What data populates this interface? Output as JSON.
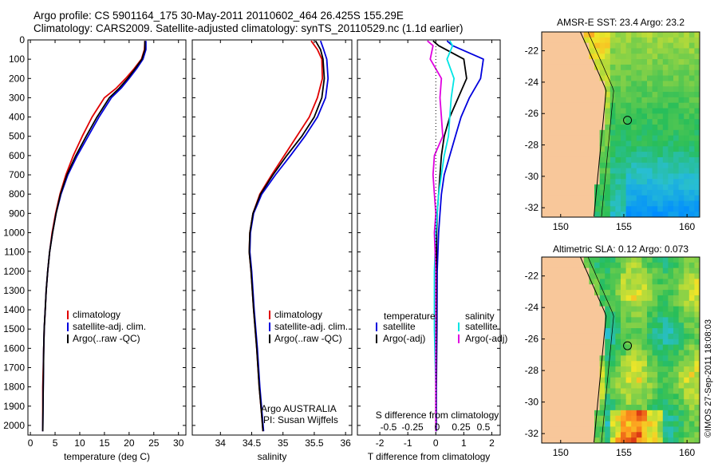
{
  "header": {
    "line1": "Argo profile: CS 5901164_175 30-May-2011 20110602_464 26.425S 155.29E",
    "line2": "Climatology: CARS2009. Satellite-adjusted climatology: synTS_20110529.nc (1.1d earlier)"
  },
  "stamp": "©IMOS 27-Sep-2011 18:08:03",
  "colors": {
    "climatology": "#e00000",
    "satellite": "#0000dd",
    "argo": "#000000",
    "salinity_satellite": "#00e5e5",
    "salinity_argo": "#e000e0",
    "land": "#f8c79a"
  },
  "chart_data": [
    {
      "type": "line",
      "id": "temperature",
      "xlabel": "temperature (deg C)",
      "ylim": [
        2050,
        0
      ],
      "xlim": [
        -0.5,
        31.5
      ],
      "xticks": [
        0,
        5,
        10,
        15,
        20,
        25,
        30
      ],
      "yticks": [
        0,
        100,
        200,
        300,
        400,
        500,
        600,
        700,
        800,
        900,
        1000,
        1100,
        1200,
        1300,
        1400,
        1500,
        1600,
        1700,
        1800,
        1900,
        2000
      ],
      "legend": [
        "climatology",
        "satellite-adj. clim.",
        "Argo(..raw -QC)"
      ],
      "series": [
        {
          "name": "climatology",
          "color": "#e00000",
          "x": [
            23.2,
            23.1,
            22.5,
            21.0,
            19.3,
            17.4,
            15.0,
            12.5,
            10.5,
            8.7,
            7.2,
            6.0,
            5.1,
            4.4,
            3.9,
            3.5,
            3.2,
            3.0,
            2.8,
            2.7,
            2.5,
            2.5
          ],
          "y": [
            5,
            50,
            100,
            150,
            200,
            250,
            300,
            400,
            500,
            600,
            700,
            800,
            900,
            1000,
            1100,
            1200,
            1300,
            1400,
            1500,
            1600,
            1800,
            2030
          ]
        },
        {
          "name": "satellite-adj. clim.",
          "color": "#0000dd",
          "x": [
            23.4,
            23.4,
            22.8,
            21.5,
            20.0,
            18.4,
            16.4,
            13.9,
            11.7,
            9.5,
            7.6,
            6.2,
            5.2,
            4.5,
            3.9,
            3.5,
            3.2,
            3.0,
            2.8,
            2.7,
            2.6,
            2.5
          ],
          "y": [
            5,
            50,
            100,
            150,
            200,
            250,
            300,
            400,
            500,
            600,
            700,
            800,
            900,
            1000,
            1100,
            1200,
            1300,
            1400,
            1500,
            1600,
            1800,
            2030
          ]
        },
        {
          "name": "Argo(..raw -QC)",
          "color": "#000000",
          "x": [
            23.2,
            23.2,
            22.6,
            21.2,
            19.7,
            18.0,
            16.0,
            13.5,
            11.3,
            9.2,
            7.4,
            6.1,
            5.2,
            4.5,
            3.9,
            3.5,
            3.2,
            3.0,
            2.8,
            2.7,
            2.6,
            2.5
          ],
          "y": [
            5,
            50,
            100,
            150,
            200,
            250,
            300,
            400,
            500,
            600,
            700,
            800,
            900,
            1000,
            1100,
            1200,
            1300,
            1400,
            1500,
            1600,
            1800,
            2030
          ]
        }
      ]
    },
    {
      "type": "line",
      "id": "salinity",
      "xlabel": "salinity",
      "xlim": [
        33.55,
        36.1
      ],
      "ylim": [
        2050,
        0
      ],
      "xticks": [
        34,
        34.5,
        35,
        35.5,
        36
      ],
      "legend": [
        "climatology",
        "satellite-adj. clim.",
        "Argo(..raw -QC)"
      ],
      "annotation": [
        "Argo AUSTRALIA",
        "PI: Susan Wijffels"
      ],
      "series": [
        {
          "name": "climatology",
          "color": "#e00000",
          "x": [
            35.45,
            35.55,
            35.62,
            35.63,
            35.55,
            35.42,
            35.22,
            35.02,
            34.82,
            34.63,
            34.52,
            34.47,
            34.46,
            34.49,
            34.53,
            34.58,
            34.62,
            34.66,
            34.68
          ],
          "y": [
            5,
            50,
            100,
            200,
            300,
            400,
            500,
            600,
            700,
            800,
            900,
            1000,
            1100,
            1200,
            1400,
            1600,
            1800,
            1950,
            2030
          ]
        },
        {
          "name": "satellite-adj. clim.",
          "color": "#0000dd",
          "x": [
            35.6,
            35.65,
            35.7,
            35.72,
            35.68,
            35.55,
            35.35,
            35.12,
            34.88,
            34.66,
            34.53,
            34.48,
            34.47,
            34.5,
            34.54,
            34.59,
            34.63,
            34.67,
            34.69
          ],
          "y": [
            5,
            50,
            100,
            200,
            300,
            400,
            500,
            600,
            700,
            800,
            900,
            1000,
            1100,
            1200,
            1400,
            1600,
            1800,
            1950,
            2030
          ]
        },
        {
          "name": "Argo(..raw -QC)",
          "color": "#000000",
          "x": [
            35.52,
            35.6,
            35.64,
            35.66,
            35.62,
            35.5,
            35.3,
            35.06,
            34.84,
            34.64,
            34.52,
            34.47,
            34.46,
            34.49,
            34.53,
            34.58,
            34.62,
            34.66,
            34.68
          ],
          "y": [
            5,
            50,
            100,
            200,
            300,
            400,
            500,
            600,
            700,
            800,
            900,
            1000,
            1100,
            1200,
            1400,
            1600,
            1800,
            1950,
            2030
          ]
        }
      ]
    },
    {
      "type": "line",
      "id": "difference",
      "xlabel": "T difference from climatology",
      "xlabel_top": "S difference from climatology",
      "xlim": [
        -2.8,
        2.3
      ],
      "ylim": [
        2050,
        0
      ],
      "xticks": [
        -2,
        -1,
        0,
        1,
        2
      ],
      "s_ticks": [
        "-0.5",
        "-0.25",
        "0",
        "0.25",
        "0.5"
      ],
      "legend_headers": [
        "temperature",
        "salinity"
      ],
      "legend": [
        "satellite",
        "Argo(-adj)",
        "satellite",
        "Argo(-adj)"
      ],
      "series": [
        {
          "name": "satellite",
          "group": "temperature",
          "color": "#0000dd",
          "x": [
            0.4,
            0.6,
            1.7,
            1.6,
            1.2,
            0.9,
            0.7,
            0.5,
            0.3,
            0.2,
            0.15,
            0.1,
            0.05,
            0.04,
            0.02,
            0.02
          ],
          "y": [
            5,
            30,
            100,
            200,
            300,
            400,
            500,
            600,
            700,
            800,
            900,
            1000,
            1200,
            1500,
            1800,
            2030
          ]
        },
        {
          "name": "Argo(-adj)",
          "group": "temperature",
          "color": "#000000",
          "x": [
            -0.1,
            0.1,
            1.0,
            1.1,
            0.8,
            0.5,
            0.3,
            0.2,
            0.15,
            0.1,
            0.05,
            0.03,
            0.02,
            0.02,
            0.01,
            0.01
          ],
          "y": [
            5,
            30,
            100,
            200,
            300,
            400,
            500,
            600,
            700,
            800,
            900,
            1000,
            1200,
            1500,
            1800,
            2030
          ]
        },
        {
          "name": "satellite",
          "group": "salinity",
          "color": "#00e5e5",
          "x": [
            0.5,
            0.6,
            0.4,
            0.65,
            0.55,
            0.5,
            0.45,
            0.3,
            0.2,
            0.1,
            0.05,
            0.0,
            -0.05,
            -0.05,
            0.0,
            0.0
          ],
          "y": [
            5,
            30,
            100,
            200,
            300,
            400,
            500,
            600,
            700,
            800,
            900,
            1000,
            1200,
            1500,
            1800,
            2030
          ]
        },
        {
          "name": "Argo(-adj)",
          "group": "salinity",
          "color": "#e000e0",
          "x": [
            -0.3,
            -0.1,
            -0.2,
            0.2,
            0.15,
            0.2,
            0.25,
            -0.05,
            -0.1,
            -0.05,
            0.0,
            -0.05,
            0.0,
            0.0,
            0.0,
            0.0
          ],
          "y": [
            5,
            30,
            100,
            200,
            300,
            400,
            500,
            600,
            700,
            800,
            900,
            1000,
            1200,
            1500,
            1800,
            2030
          ]
        }
      ]
    },
    {
      "type": "heatmap",
      "id": "sst_map",
      "title": "AMSR-E SST: 23.4 Argo: 23.2",
      "xticks": [
        150,
        155,
        160
      ],
      "yticks": [
        -22,
        -24,
        -26,
        -28,
        -30,
        -32
      ],
      "xlim": [
        148.5,
        161
      ],
      "ylim": [
        -32.6,
        -20.8
      ],
      "marker": {
        "lon": 155.29,
        "lat": -26.425
      }
    },
    {
      "type": "heatmap",
      "id": "sla_map",
      "title": "Altimetric SLA: 0.12 Argo: 0.073",
      "xticks": [
        150,
        155,
        160
      ],
      "yticks": [
        -22,
        -24,
        -26,
        -28,
        -30,
        -32
      ],
      "xlim": [
        148.5,
        161
      ],
      "ylim": [
        -32.6,
        -20.8
      ],
      "marker": {
        "lon": 155.29,
        "lat": -26.425
      }
    }
  ]
}
